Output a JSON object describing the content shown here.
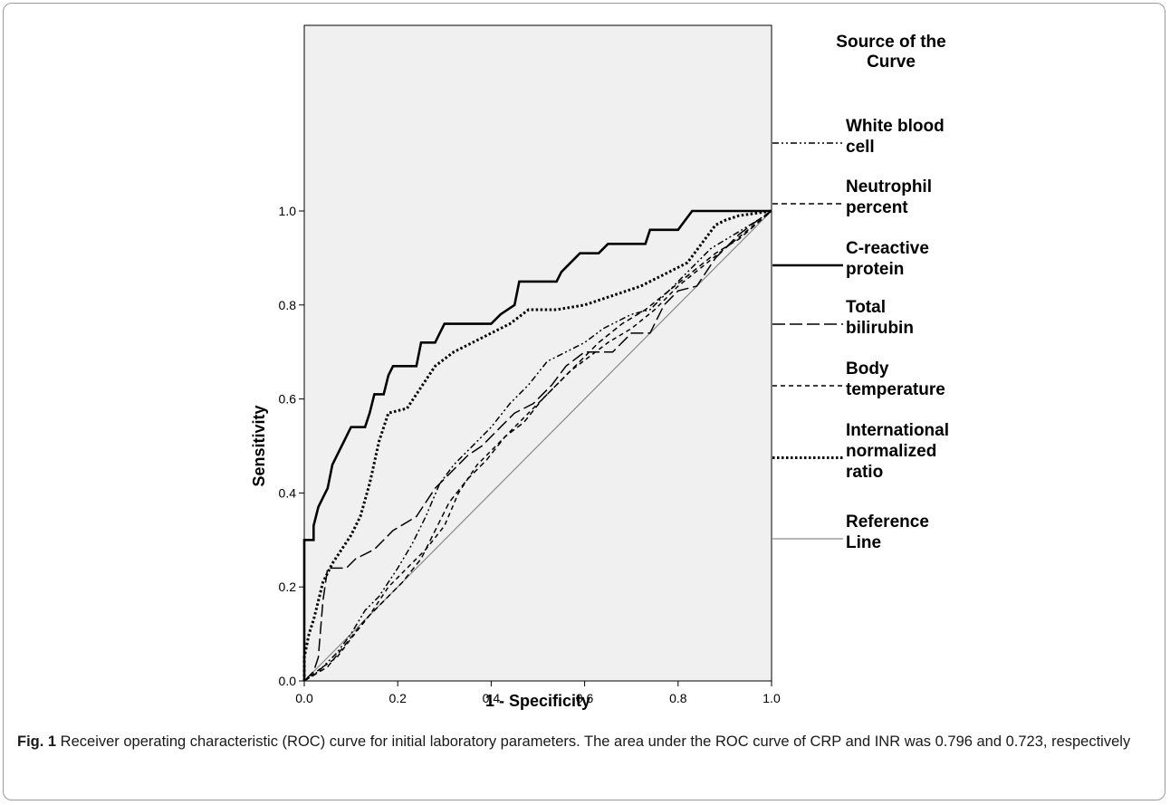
{
  "chart_data": {
    "type": "line",
    "title": "",
    "xlabel": "1 - Specificity",
    "ylabel": "Sensitivity",
    "xlim": [
      0,
      1
    ],
    "ylim": [
      0,
      1
    ],
    "xticks": [
      "0.0",
      "0.2",
      "0.4",
      "0.6",
      "0.8",
      "1.0"
    ],
    "yticks": [
      "0.0",
      "0.2",
      "0.4",
      "0.6",
      "0.8",
      "1.0"
    ],
    "grid": false,
    "legend_title": "Source of the Curve",
    "legend_placement": "right",
    "series": [
      {
        "name": "White blood cell",
        "dash": "dash-dot-dot",
        "points": [
          [
            0,
            0
          ],
          [
            0.03,
            0.02
          ],
          [
            0.07,
            0.06
          ],
          [
            0.1,
            0.1
          ],
          [
            0.13,
            0.15
          ],
          [
            0.16,
            0.18
          ],
          [
            0.2,
            0.24
          ],
          [
            0.23,
            0.29
          ],
          [
            0.26,
            0.35
          ],
          [
            0.29,
            0.42
          ],
          [
            0.32,
            0.46
          ],
          [
            0.36,
            0.5
          ],
          [
            0.4,
            0.54
          ],
          [
            0.44,
            0.59
          ],
          [
            0.48,
            0.63
          ],
          [
            0.52,
            0.68
          ],
          [
            0.56,
            0.7
          ],
          [
            0.6,
            0.72
          ],
          [
            0.64,
            0.75
          ],
          [
            0.7,
            0.78
          ],
          [
            0.74,
            0.79
          ],
          [
            0.78,
            0.83
          ],
          [
            0.82,
            0.87
          ],
          [
            0.87,
            0.92
          ],
          [
            0.92,
            0.95
          ],
          [
            0.97,
            0.98
          ],
          [
            1,
            1
          ]
        ]
      },
      {
        "name": "Neutrophil percent",
        "dash": "dash",
        "points": [
          [
            0,
            0
          ],
          [
            0.05,
            0.03
          ],
          [
            0.09,
            0.08
          ],
          [
            0.13,
            0.13
          ],
          [
            0.17,
            0.17
          ],
          [
            0.21,
            0.21
          ],
          [
            0.25,
            0.26
          ],
          [
            0.28,
            0.32
          ],
          [
            0.31,
            0.38
          ],
          [
            0.35,
            0.43
          ],
          [
            0.39,
            0.47
          ],
          [
            0.43,
            0.52
          ],
          [
            0.47,
            0.55
          ],
          [
            0.51,
            0.6
          ],
          [
            0.55,
            0.64
          ],
          [
            0.59,
            0.68
          ],
          [
            0.63,
            0.72
          ],
          [
            0.68,
            0.76
          ],
          [
            0.73,
            0.79
          ],
          [
            0.78,
            0.83
          ],
          [
            0.83,
            0.87
          ],
          [
            0.88,
            0.91
          ],
          [
            0.93,
            0.94
          ],
          [
            1,
            1
          ]
        ]
      },
      {
        "name": "C-reactive protein",
        "dash": "solid",
        "points": [
          [
            0,
            0
          ],
          [
            0,
            0.3
          ],
          [
            0.02,
            0.3
          ],
          [
            0.02,
            0.33
          ],
          [
            0.03,
            0.37
          ],
          [
            0.04,
            0.39
          ],
          [
            0.05,
            0.41
          ],
          [
            0.06,
            0.46
          ],
          [
            0.07,
            0.48
          ],
          [
            0.08,
            0.5
          ],
          [
            0.1,
            0.54
          ],
          [
            0.13,
            0.54
          ],
          [
            0.14,
            0.57
          ],
          [
            0.15,
            0.61
          ],
          [
            0.17,
            0.61
          ],
          [
            0.18,
            0.65
          ],
          [
            0.19,
            0.67
          ],
          [
            0.24,
            0.67
          ],
          [
            0.25,
            0.72
          ],
          [
            0.28,
            0.72
          ],
          [
            0.29,
            0.74
          ],
          [
            0.3,
            0.76
          ],
          [
            0.4,
            0.76
          ],
          [
            0.42,
            0.78
          ],
          [
            0.45,
            0.8
          ],
          [
            0.46,
            0.85
          ],
          [
            0.54,
            0.85
          ],
          [
            0.55,
            0.87
          ],
          [
            0.57,
            0.89
          ],
          [
            0.59,
            0.91
          ],
          [
            0.63,
            0.91
          ],
          [
            0.65,
            0.93
          ],
          [
            0.73,
            0.93
          ],
          [
            0.74,
            0.96
          ],
          [
            0.8,
            0.96
          ],
          [
            0.83,
            1
          ],
          [
            1,
            1
          ]
        ]
      },
      {
        "name": "Total bilirubin",
        "dash": "long-dash",
        "points": [
          [
            0,
            0
          ],
          [
            0.02,
            0.02
          ],
          [
            0.03,
            0.05
          ],
          [
            0.04,
            0.17
          ],
          [
            0.05,
            0.24
          ],
          [
            0.09,
            0.24
          ],
          [
            0.11,
            0.26
          ],
          [
            0.15,
            0.28
          ],
          [
            0.19,
            0.32
          ],
          [
            0.24,
            0.35
          ],
          [
            0.28,
            0.41
          ],
          [
            0.32,
            0.45
          ],
          [
            0.35,
            0.48
          ],
          [
            0.38,
            0.5
          ],
          [
            0.42,
            0.54
          ],
          [
            0.45,
            0.57
          ],
          [
            0.49,
            0.59
          ],
          [
            0.53,
            0.63
          ],
          [
            0.56,
            0.67
          ],
          [
            0.6,
            0.7
          ],
          [
            0.66,
            0.7
          ],
          [
            0.7,
            0.74
          ],
          [
            0.74,
            0.74
          ],
          [
            0.77,
            0.8
          ],
          [
            0.8,
            0.83
          ],
          [
            0.84,
            0.84
          ],
          [
            0.88,
            0.9
          ],
          [
            0.93,
            0.95
          ],
          [
            0.97,
            0.98
          ],
          [
            1,
            1
          ]
        ]
      },
      {
        "name": "Body temperature",
        "dash": "short-dash",
        "points": [
          [
            0,
            0
          ],
          [
            0.04,
            0.03
          ],
          [
            0.07,
            0.05
          ],
          [
            0.1,
            0.09
          ],
          [
            0.14,
            0.14
          ],
          [
            0.18,
            0.2
          ],
          [
            0.22,
            0.24
          ],
          [
            0.26,
            0.28
          ],
          [
            0.3,
            0.33
          ],
          [
            0.33,
            0.4
          ],
          [
            0.37,
            0.46
          ],
          [
            0.41,
            0.5
          ],
          [
            0.45,
            0.54
          ],
          [
            0.49,
            0.58
          ],
          [
            0.53,
            0.62
          ],
          [
            0.57,
            0.66
          ],
          [
            0.61,
            0.69
          ],
          [
            0.65,
            0.72
          ],
          [
            0.7,
            0.75
          ],
          [
            0.75,
            0.79
          ],
          [
            0.8,
            0.84
          ],
          [
            0.85,
            0.88
          ],
          [
            0.9,
            0.92
          ],
          [
            0.95,
            0.96
          ],
          [
            1,
            1
          ]
        ]
      },
      {
        "name": "International normalized ratio",
        "dash": "dot",
        "points": [
          [
            0,
            0
          ],
          [
            0,
            0.05
          ],
          [
            0.01,
            0.1
          ],
          [
            0.02,
            0.13
          ],
          [
            0.03,
            0.17
          ],
          [
            0.04,
            0.21
          ],
          [
            0.06,
            0.25
          ],
          [
            0.08,
            0.28
          ],
          [
            0.1,
            0.31
          ],
          [
            0.12,
            0.35
          ],
          [
            0.14,
            0.42
          ],
          [
            0.16,
            0.51
          ],
          [
            0.18,
            0.57
          ],
          [
            0.22,
            0.58
          ],
          [
            0.24,
            0.61
          ],
          [
            0.26,
            0.64
          ],
          [
            0.28,
            0.67
          ],
          [
            0.32,
            0.7
          ],
          [
            0.36,
            0.72
          ],
          [
            0.4,
            0.74
          ],
          [
            0.44,
            0.76
          ],
          [
            0.48,
            0.79
          ],
          [
            0.54,
            0.79
          ],
          [
            0.6,
            0.8
          ],
          [
            0.66,
            0.82
          ],
          [
            0.72,
            0.84
          ],
          [
            0.78,
            0.87
          ],
          [
            0.82,
            0.89
          ],
          [
            0.85,
            0.93
          ],
          [
            0.88,
            0.97
          ],
          [
            0.9,
            0.98
          ],
          [
            0.93,
            0.99
          ],
          [
            1,
            1
          ]
        ]
      },
      {
        "name": "Reference Line",
        "dash": "reference",
        "points": [
          [
            0,
            0
          ],
          [
            1,
            1
          ]
        ]
      }
    ]
  },
  "legend": {
    "title_lines": [
      "Source of the",
      "Curve"
    ],
    "entries": [
      {
        "lines": [
          "White blood",
          "cell"
        ]
      },
      {
        "lines": [
          "Neutrophil",
          "percent"
        ]
      },
      {
        "lines": [
          "C-reactive",
          "protein"
        ]
      },
      {
        "lines": [
          "Total",
          "bilirubin"
        ]
      },
      {
        "lines": [
          "Body",
          "temperature"
        ]
      },
      {
        "lines": [
          "International",
          "normalized",
          "ratio"
        ]
      },
      {
        "lines": [
          "Reference",
          "Line"
        ]
      }
    ]
  },
  "caption": {
    "label": "Fig. 1",
    "text": " Receiver operating characteristic (ROC) curve for initial laboratory parameters. The area under the ROC curve of CRP and INR was 0.796 and 0.723, respectively"
  },
  "colors": {
    "plot_background": "#f0f0f0",
    "curve": "#000000",
    "reference": "#8a8a8a"
  }
}
